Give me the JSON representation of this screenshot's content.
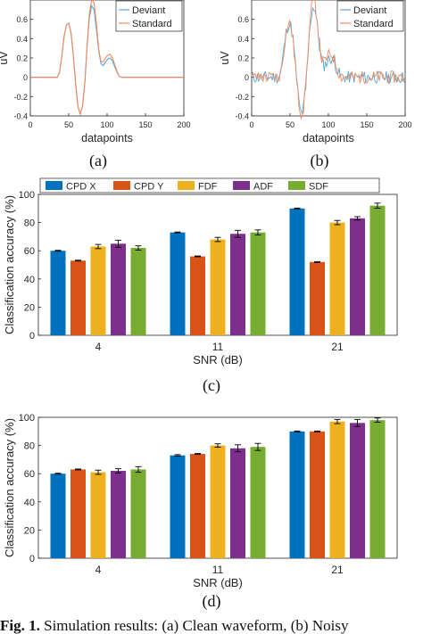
{
  "colors": {
    "deviant": "#5aa7d8",
    "standard": "#ee8a5d",
    "cpdx": "#0072bd",
    "cpdy": "#d95319",
    "fdf": "#edb120",
    "adf": "#7e2f8e",
    "sdf": "#77ac30",
    "axis": "#262626"
  },
  "panels": {
    "a": {
      "label": "(a)"
    },
    "b": {
      "label": "(b)"
    },
    "c": {
      "label": "(c)"
    },
    "d": {
      "label": "(d)"
    }
  },
  "caption": {
    "bold": "Fig. 1.",
    "text": "Simulation results: (a) Clean waveform, (b) Noisy"
  },
  "chart_data": [
    {
      "id": "a",
      "type": "line",
      "xlabel": "datapoints",
      "ylabel": "uV",
      "xlim": [
        0,
        200
      ],
      "ylim": [
        -0.4,
        0.8
      ],
      "xticks": [
        0,
        50,
        100,
        150,
        200
      ],
      "yticks": [
        -0.4,
        -0.2,
        0,
        0.2,
        0.4,
        0.6
      ],
      "legend": {
        "position": "top-right"
      },
      "series": [
        {
          "name": "Deviant",
          "x": [
            0,
            35,
            38,
            41,
            44,
            47,
            50,
            53,
            56,
            59,
            62,
            65,
            68,
            71,
            74,
            77,
            80,
            83,
            86,
            89,
            92,
            95,
            98,
            101,
            104,
            107,
            110,
            113,
            116,
            119,
            122,
            125,
            128,
            200
          ],
          "y": [
            0,
            0,
            0.05,
            0.22,
            0.42,
            0.54,
            0.56,
            0.46,
            0.22,
            -0.06,
            -0.3,
            -0.38,
            -0.3,
            -0.05,
            0.32,
            0.62,
            0.74,
            0.7,
            0.5,
            0.28,
            0.14,
            0.12,
            0.16,
            0.19,
            0.2,
            0.17,
            0.11,
            0.05,
            0.01,
            0,
            0,
            0,
            0,
            0
          ]
        },
        {
          "name": "Standard",
          "x": [
            0,
            35,
            38,
            41,
            44,
            47,
            50,
            53,
            56,
            59,
            62,
            65,
            68,
            71,
            74,
            77,
            80,
            83,
            86,
            89,
            92,
            95,
            98,
            101,
            104,
            107,
            110,
            113,
            116,
            119,
            122,
            125,
            128,
            200
          ],
          "y": [
            0,
            0,
            0.05,
            0.22,
            0.42,
            0.54,
            0.56,
            0.46,
            0.22,
            -0.06,
            -0.3,
            -0.38,
            -0.3,
            -0.05,
            0.33,
            0.66,
            0.81,
            0.77,
            0.56,
            0.3,
            0.16,
            0.16,
            0.2,
            0.23,
            0.24,
            0.2,
            0.13,
            0.06,
            0.01,
            0,
            0,
            0,
            0,
            0
          ]
        }
      ]
    },
    {
      "id": "b",
      "type": "line",
      "xlabel": "datapoints",
      "ylabel": "uV",
      "xlim": [
        0,
        200
      ],
      "ylim": [
        -0.4,
        0.8
      ],
      "xticks": [
        0,
        50,
        100,
        150,
        200
      ],
      "yticks": [
        -0.4,
        -0.2,
        0,
        0.2,
        0.4,
        0.6
      ],
      "legend": {
        "position": "top-right"
      },
      "series": [
        {
          "name": "Deviant"
        },
        {
          "name": "Standard"
        }
      ]
    },
    {
      "id": "c",
      "type": "bar",
      "xlabel": "SNR (dB)",
      "ylabel": "Classification accuracy (%)",
      "ylim": [
        0,
        100
      ],
      "yticks": [
        0,
        20,
        40,
        60,
        80,
        100
      ],
      "categories": [
        "4",
        "11",
        "21"
      ],
      "legend": {
        "position": "top",
        "orientation": "horizontal"
      },
      "series": [
        {
          "name": "CPD X",
          "values": [
            60,
            73,
            90
          ],
          "errors": [
            0.3,
            0.3,
            0.3
          ]
        },
        {
          "name": "CPD Y",
          "values": [
            53,
            56,
            52
          ],
          "errors": [
            0.3,
            0.3,
            0.3
          ]
        },
        {
          "name": "FDF",
          "values": [
            63,
            68,
            80
          ],
          "errors": [
            1.5,
            1.5,
            1.5
          ]
        },
        {
          "name": "ADF",
          "values": [
            65,
            72,
            83
          ],
          "errors": [
            2.5,
            2.5,
            1.2
          ]
        },
        {
          "name": "SDF",
          "values": [
            62,
            73,
            92
          ],
          "errors": [
            1.5,
            1.8,
            1.8
          ]
        }
      ]
    },
    {
      "id": "d",
      "type": "bar",
      "xlabel": "SNR (dB)",
      "ylabel": "Classification accuracy (%)",
      "ylim": [
        0,
        100
      ],
      "yticks": [
        0,
        20,
        40,
        60,
        80,
        100
      ],
      "categories": [
        "4",
        "11",
        "21"
      ],
      "series": [
        {
          "name": "CPD X",
          "values": [
            60,
            73,
            90
          ],
          "errors": [
            0.3,
            0.5,
            0.3
          ]
        },
        {
          "name": "CPD Y",
          "values": [
            63,
            74,
            90
          ],
          "errors": [
            0.3,
            0.3,
            0.3
          ]
        },
        {
          "name": "FDF",
          "values": [
            61,
            80,
            97
          ],
          "errors": [
            1.5,
            1.2,
            1.5
          ]
        },
        {
          "name": "ADF",
          "values": [
            62,
            78,
            96
          ],
          "errors": [
            1.5,
            2.5,
            2.5
          ]
        },
        {
          "name": "SDF",
          "values": [
            63,
            79,
            98
          ],
          "errors": [
            2,
            2.5,
            1.5
          ]
        }
      ]
    }
  ]
}
